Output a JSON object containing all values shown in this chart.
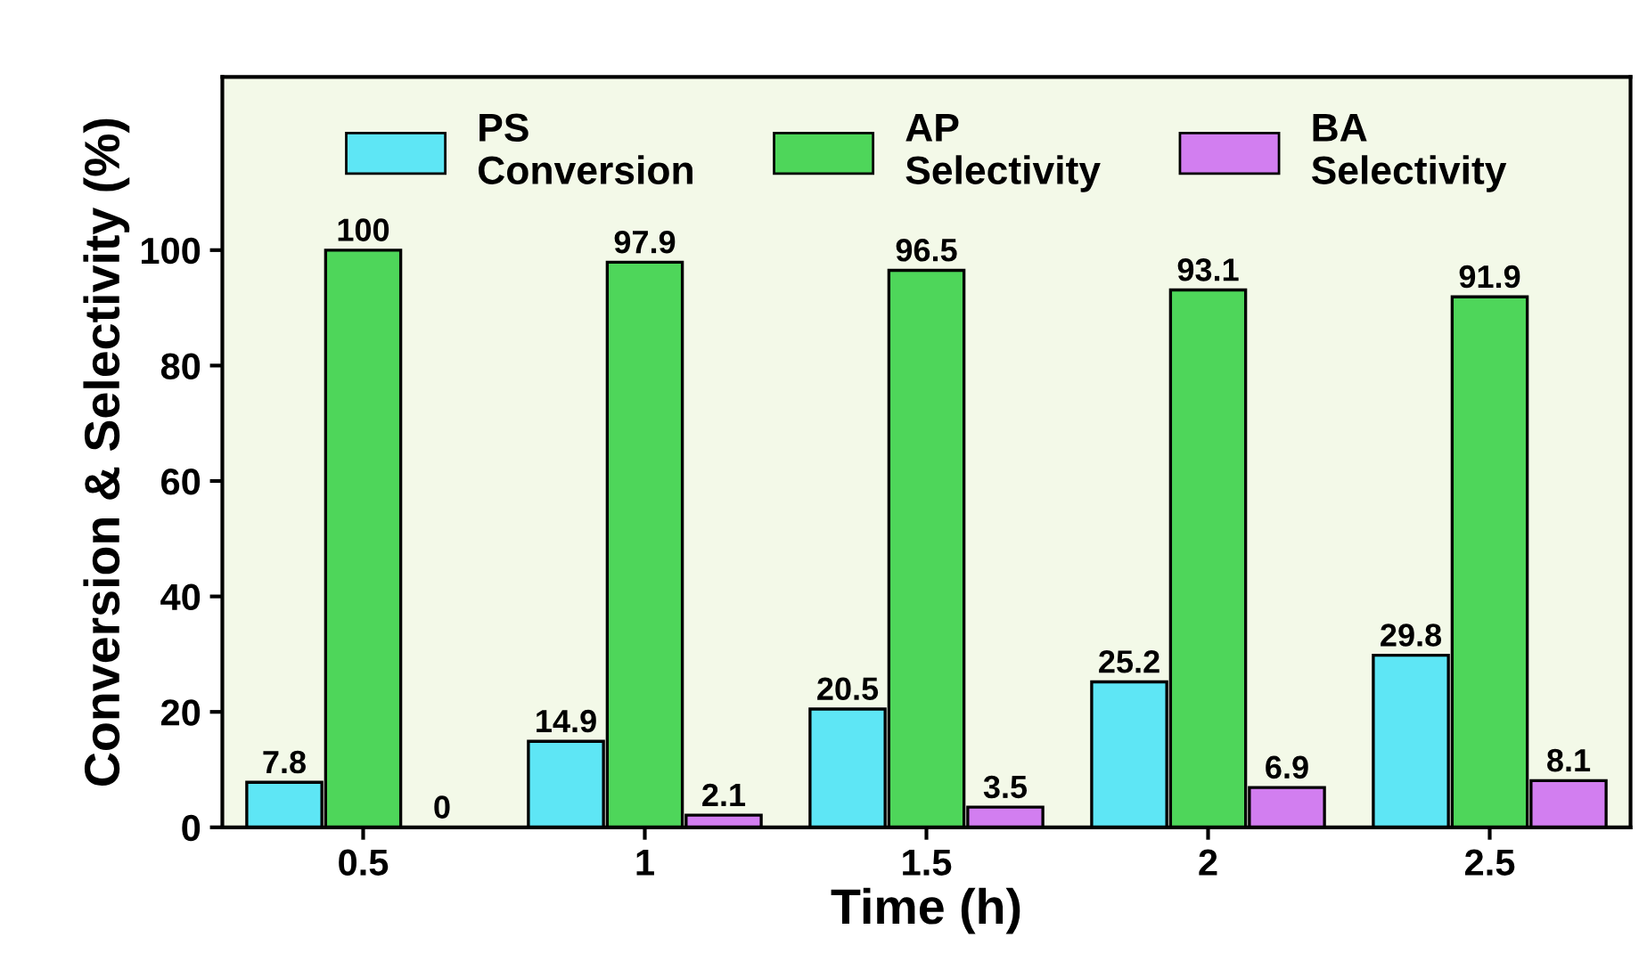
{
  "chart_data": {
    "type": "bar",
    "xlabel": "Time (h)",
    "ylabel": "Conversion & Selectivity (%)",
    "categories": [
      "0.5",
      "1",
      "1.5",
      "2",
      "2.5"
    ],
    "series": [
      {
        "name": "PS\nConversion",
        "color": "#5ee6f5",
        "values": [
          7.8,
          14.9,
          20.5,
          25.2,
          29.8
        ]
      },
      {
        "name": "AP\nSelectivity",
        "color": "#4ed65a",
        "values": [
          100,
          97.9,
          96.5,
          93.1,
          91.9
        ]
      },
      {
        "name": "BA\nSelectivity",
        "color": "#d27ef0",
        "values": [
          0,
          2.1,
          3.5,
          6.9,
          8.1
        ]
      }
    ],
    "ylim": [
      0,
      130
    ],
    "yticks": [
      0,
      20,
      40,
      60,
      80,
      100
    ],
    "data_labels": true,
    "legend": "top",
    "grid": false
  }
}
